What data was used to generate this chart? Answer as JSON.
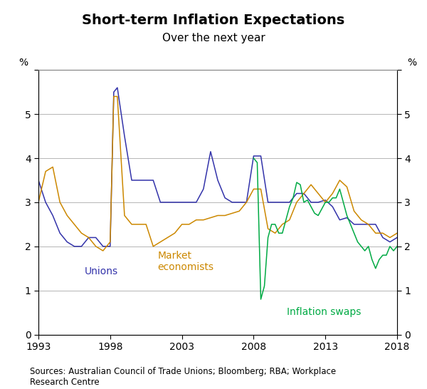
{
  "title": "Short-term Inflation Expectations",
  "subtitle": "Over the next year",
  "ylabel_left": "%",
  "ylabel_right": "%",
  "source": "Sources: Australian Council of Trade Unions; Bloomberg; RBA; Workplace\nResearch Centre",
  "ylim": [
    0,
    6
  ],
  "yticks": [
    0,
    1,
    2,
    3,
    4,
    5,
    6
  ],
  "xlim_start": 1993,
  "xlim_end": 2018,
  "xticks": [
    1993,
    1998,
    2003,
    2008,
    2013,
    2018
  ],
  "unions_color": "#3333aa",
  "market_color": "#cc8800",
  "swaps_color": "#00aa44",
  "unions_label": "Unions",
  "market_label": "Market\neconomists",
  "swaps_label": "Inflation swaps",
  "unions_x": [
    1993.0,
    1993.5,
    1994.0,
    1994.5,
    1995.0,
    1995.5,
    1996.0,
    1996.5,
    1997.0,
    1997.5,
    1998.0,
    1998.25,
    1998.5,
    1999.0,
    1999.5,
    2000.0,
    2000.5,
    2001.0,
    2001.5,
    2002.0,
    2002.5,
    2003.0,
    2003.5,
    2004.0,
    2004.5,
    2005.0,
    2005.5,
    2006.0,
    2006.5,
    2007.0,
    2007.5,
    2008.0,
    2008.5,
    2009.0,
    2009.5,
    2010.0,
    2010.5,
    2011.0,
    2011.5,
    2012.0,
    2012.5,
    2013.0,
    2013.5,
    2014.0,
    2014.5,
    2015.0,
    2015.5,
    2016.0,
    2016.5,
    2017.0,
    2017.5,
    2018.0
  ],
  "unions_y": [
    3.5,
    3.0,
    2.7,
    2.3,
    2.1,
    2.0,
    2.0,
    2.2,
    2.2,
    2.0,
    2.0,
    5.5,
    5.6,
    4.5,
    3.5,
    3.5,
    3.5,
    3.5,
    3.0,
    3.0,
    3.0,
    3.0,
    3.0,
    3.0,
    3.3,
    4.15,
    3.5,
    3.1,
    3.0,
    3.0,
    3.0,
    4.05,
    4.05,
    3.0,
    3.0,
    3.0,
    3.0,
    3.2,
    3.2,
    3.0,
    3.0,
    3.05,
    2.9,
    2.6,
    2.65,
    2.5,
    2.5,
    2.5,
    2.5,
    2.2,
    2.1,
    2.2
  ],
  "market_x": [
    1993.0,
    1993.5,
    1994.0,
    1994.5,
    1995.0,
    1995.5,
    1996.0,
    1996.5,
    1997.0,
    1997.5,
    1998.0,
    1998.25,
    1998.5,
    1999.0,
    1999.5,
    2000.0,
    2000.5,
    2001.0,
    2001.5,
    2002.0,
    2002.5,
    2003.0,
    2003.5,
    2004.0,
    2004.5,
    2005.0,
    2005.5,
    2006.0,
    2006.5,
    2007.0,
    2007.5,
    2008.0,
    2008.5,
    2009.0,
    2009.5,
    2010.0,
    2010.5,
    2011.0,
    2011.5,
    2012.0,
    2012.5,
    2013.0,
    2013.5,
    2014.0,
    2014.5,
    2015.0,
    2015.5,
    2016.0,
    2016.5,
    2017.0,
    2017.5,
    2018.0
  ],
  "market_y": [
    3.0,
    3.7,
    3.8,
    3.0,
    2.7,
    2.5,
    2.3,
    2.2,
    2.0,
    1.9,
    2.1,
    5.4,
    5.4,
    2.7,
    2.5,
    2.5,
    2.5,
    2.0,
    2.1,
    2.2,
    2.3,
    2.5,
    2.5,
    2.6,
    2.6,
    2.65,
    2.7,
    2.7,
    2.75,
    2.8,
    3.0,
    3.3,
    3.3,
    2.4,
    2.3,
    2.5,
    2.6,
    3.0,
    3.2,
    3.4,
    3.2,
    3.0,
    3.2,
    3.5,
    3.35,
    2.8,
    2.6,
    2.5,
    2.3,
    2.3,
    2.2,
    2.3
  ],
  "swaps_x": [
    2008.0,
    2008.25,
    2008.5,
    2008.75,
    2009.0,
    2009.25,
    2009.5,
    2009.75,
    2010.0,
    2010.25,
    2010.5,
    2010.75,
    2011.0,
    2011.25,
    2011.5,
    2011.75,
    2012.0,
    2012.25,
    2012.5,
    2012.75,
    2013.0,
    2013.25,
    2013.5,
    2013.75,
    2014.0,
    2014.25,
    2014.5,
    2014.75,
    2015.0,
    2015.25,
    2015.5,
    2015.75,
    2016.0,
    2016.25,
    2016.5,
    2016.75,
    2017.0,
    2017.25,
    2017.5,
    2017.75,
    2018.0
  ],
  "swaps_y": [
    4.0,
    3.9,
    0.8,
    1.1,
    2.2,
    2.5,
    2.5,
    2.3,
    2.3,
    2.6,
    2.9,
    3.1,
    3.45,
    3.4,
    3.0,
    3.05,
    2.9,
    2.75,
    2.7,
    2.85,
    3.0,
    3.0,
    3.1,
    3.1,
    3.3,
    3.0,
    2.7,
    2.5,
    2.3,
    2.1,
    2.0,
    1.9,
    2.0,
    1.7,
    1.5,
    1.7,
    1.8,
    1.8,
    2.0,
    1.9,
    2.0
  ],
  "background_color": "#ffffff",
  "grid_color": "#aaaaaa",
  "tick_label_fontsize": 10,
  "axis_label_fontsize": 10,
  "title_fontsize": 14,
  "subtitle_fontsize": 11
}
